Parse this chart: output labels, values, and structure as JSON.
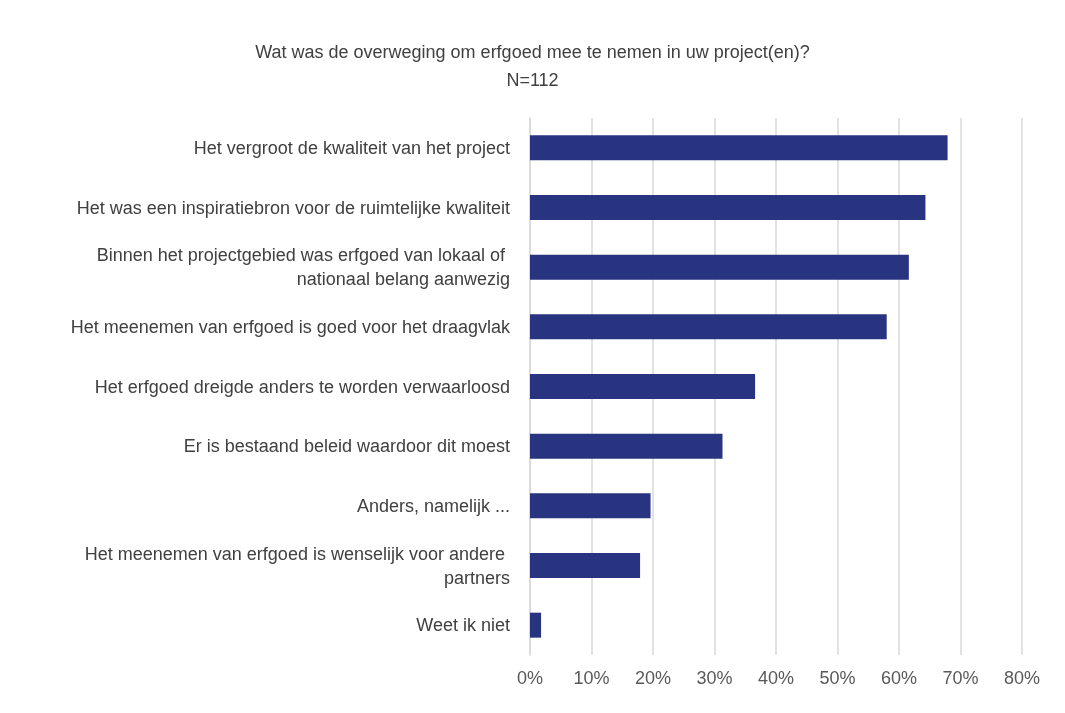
{
  "chart_data": {
    "type": "bar",
    "orientation": "horizontal",
    "title": "Wat was de overweging om erfgoed mee te nemen in uw project(en)?",
    "subtitle": "N=112",
    "categories": [
      "Het vergroot de kwaliteit van het project",
      "Het was een inspiratiebron voor de ruimtelijke kwaliteit",
      "Binnen het projectgebied was erfgoed van lokaal of nationaal belang aanwezig",
      "Het meenemen van erfgoed is goed voor het draagvlak",
      "Het erfgoed dreigde anders te worden verwaarloosd",
      "Er is bestaand beleid waardoor dit moest",
      "Anders, namelijk ...",
      "Het meenemen van erfgoed is wenselijk voor andere partners",
      "Weet ik niet"
    ],
    "values": [
      67.9,
      64.3,
      61.6,
      58.0,
      36.6,
      31.3,
      19.6,
      17.9,
      1.8
    ],
    "color": "#283480",
    "xlim": [
      0,
      80
    ],
    "xticks": [
      {
        "value": 0,
        "label": "0%"
      },
      {
        "value": 10,
        "label": "10%"
      },
      {
        "value": 20,
        "label": "20%"
      },
      {
        "value": 30,
        "label": "30%"
      },
      {
        "value": 40,
        "label": "40%"
      },
      {
        "value": 50,
        "label": "50%"
      },
      {
        "value": 60,
        "label": "60%"
      },
      {
        "value": 70,
        "label": "70%"
      },
      {
        "value": 80,
        "label": "80%"
      }
    ],
    "grid": "x"
  }
}
